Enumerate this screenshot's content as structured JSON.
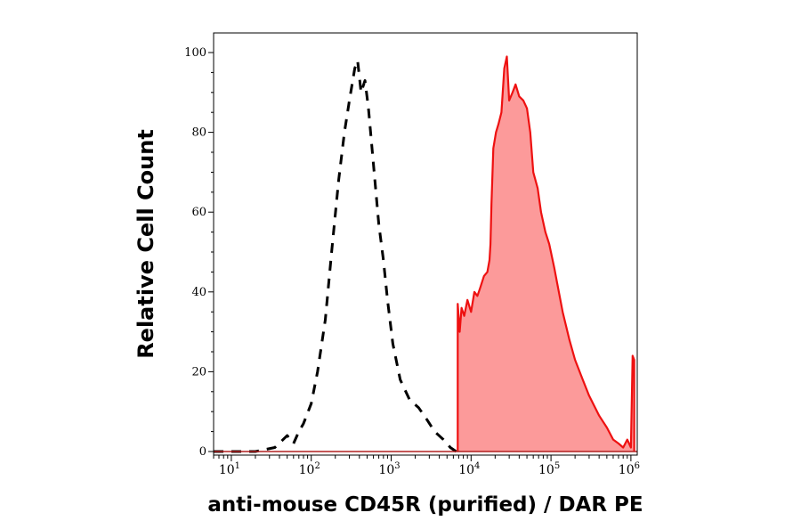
{
  "chart_data": {
    "type": "area",
    "title": "",
    "xlabel": "anti-mouse CD45R (purified) / DAR PE",
    "ylabel": "Relative Cell Count",
    "x_scale": "log",
    "xlim": [
      6,
      1200000
    ],
    "ylim": [
      0,
      100
    ],
    "grid": false,
    "x_ticks": [
      {
        "value": 10,
        "base": "10",
        "exp": "1"
      },
      {
        "value": 100,
        "base": "10",
        "exp": "2"
      },
      {
        "value": 1000,
        "base": "10",
        "exp": "3"
      },
      {
        "value": 10000,
        "base": "10",
        "exp": "4"
      },
      {
        "value": 100000,
        "base": "10",
        "exp": "5"
      },
      {
        "value": 1000000,
        "base": "10",
        "exp": "6"
      }
    ],
    "y_ticks": [
      {
        "value": 0,
        "label": "0"
      },
      {
        "value": 20,
        "label": "20"
      },
      {
        "value": 40,
        "label": "40"
      },
      {
        "value": 60,
        "label": "60"
      },
      {
        "value": 80,
        "label": "80"
      },
      {
        "value": 100,
        "label": "100"
      }
    ],
    "series": [
      {
        "style": "dashed",
        "color": "#000000",
        "fill": "none",
        "points": [
          [
            6,
            0
          ],
          [
            20,
            0
          ],
          [
            35,
            1
          ],
          [
            50,
            4
          ],
          [
            60,
            2
          ],
          [
            70,
            5
          ],
          [
            80,
            7
          ],
          [
            100,
            12
          ],
          [
            120,
            20
          ],
          [
            150,
            33
          ],
          [
            180,
            50
          ],
          [
            220,
            68
          ],
          [
            260,
            80
          ],
          [
            300,
            88
          ],
          [
            350,
            96
          ],
          [
            380,
            98
          ],
          [
            420,
            90
          ],
          [
            470,
            93
          ],
          [
            520,
            86
          ],
          [
            600,
            72
          ],
          [
            700,
            57
          ],
          [
            800,
            48
          ],
          [
            900,
            38
          ],
          [
            1050,
            27
          ],
          [
            1300,
            18
          ],
          [
            1700,
            13
          ],
          [
            2200,
            11
          ],
          [
            2800,
            8
          ],
          [
            3500,
            5
          ],
          [
            4500,
            3
          ],
          [
            5500,
            1
          ],
          [
            6500,
            0
          ]
        ]
      },
      {
        "style": "solid",
        "color": "#ee1111",
        "fill": "#fc9a9a",
        "points": [
          [
            6800,
            0
          ],
          [
            6800,
            37
          ],
          [
            7200,
            30
          ],
          [
            7600,
            36
          ],
          [
            8200,
            34
          ],
          [
            9000,
            38
          ],
          [
            10000,
            35
          ],
          [
            11000,
            40
          ],
          [
            12000,
            39
          ],
          [
            13000,
            41
          ],
          [
            14500,
            44
          ],
          [
            16000,
            45
          ],
          [
            17000,
            48
          ],
          [
            17500,
            52
          ],
          [
            18000,
            62
          ],
          [
            19000,
            76
          ],
          [
            20500,
            80
          ],
          [
            22000,
            82
          ],
          [
            24000,
            85
          ],
          [
            26000,
            96
          ],
          [
            28000,
            99
          ],
          [
            30000,
            88
          ],
          [
            33000,
            90
          ],
          [
            36000,
            92
          ],
          [
            40000,
            89
          ],
          [
            45000,
            88
          ],
          [
            50000,
            86
          ],
          [
            55000,
            80
          ],
          [
            60000,
            70
          ],
          [
            68000,
            66
          ],
          [
            75000,
            60
          ],
          [
            85000,
            55
          ],
          [
            95000,
            52
          ],
          [
            110000,
            46
          ],
          [
            120000,
            42
          ],
          [
            140000,
            35
          ],
          [
            170000,
            28
          ],
          [
            200000,
            23
          ],
          [
            250000,
            18
          ],
          [
            300000,
            14
          ],
          [
            400000,
            9
          ],
          [
            500000,
            6
          ],
          [
            600000,
            3
          ],
          [
            700000,
            2
          ],
          [
            800000,
            1
          ],
          [
            900000,
            3
          ],
          [
            1000000,
            1
          ],
          [
            1050000,
            24
          ],
          [
            1100000,
            23
          ],
          [
            1100000,
            0
          ]
        ]
      }
    ]
  }
}
